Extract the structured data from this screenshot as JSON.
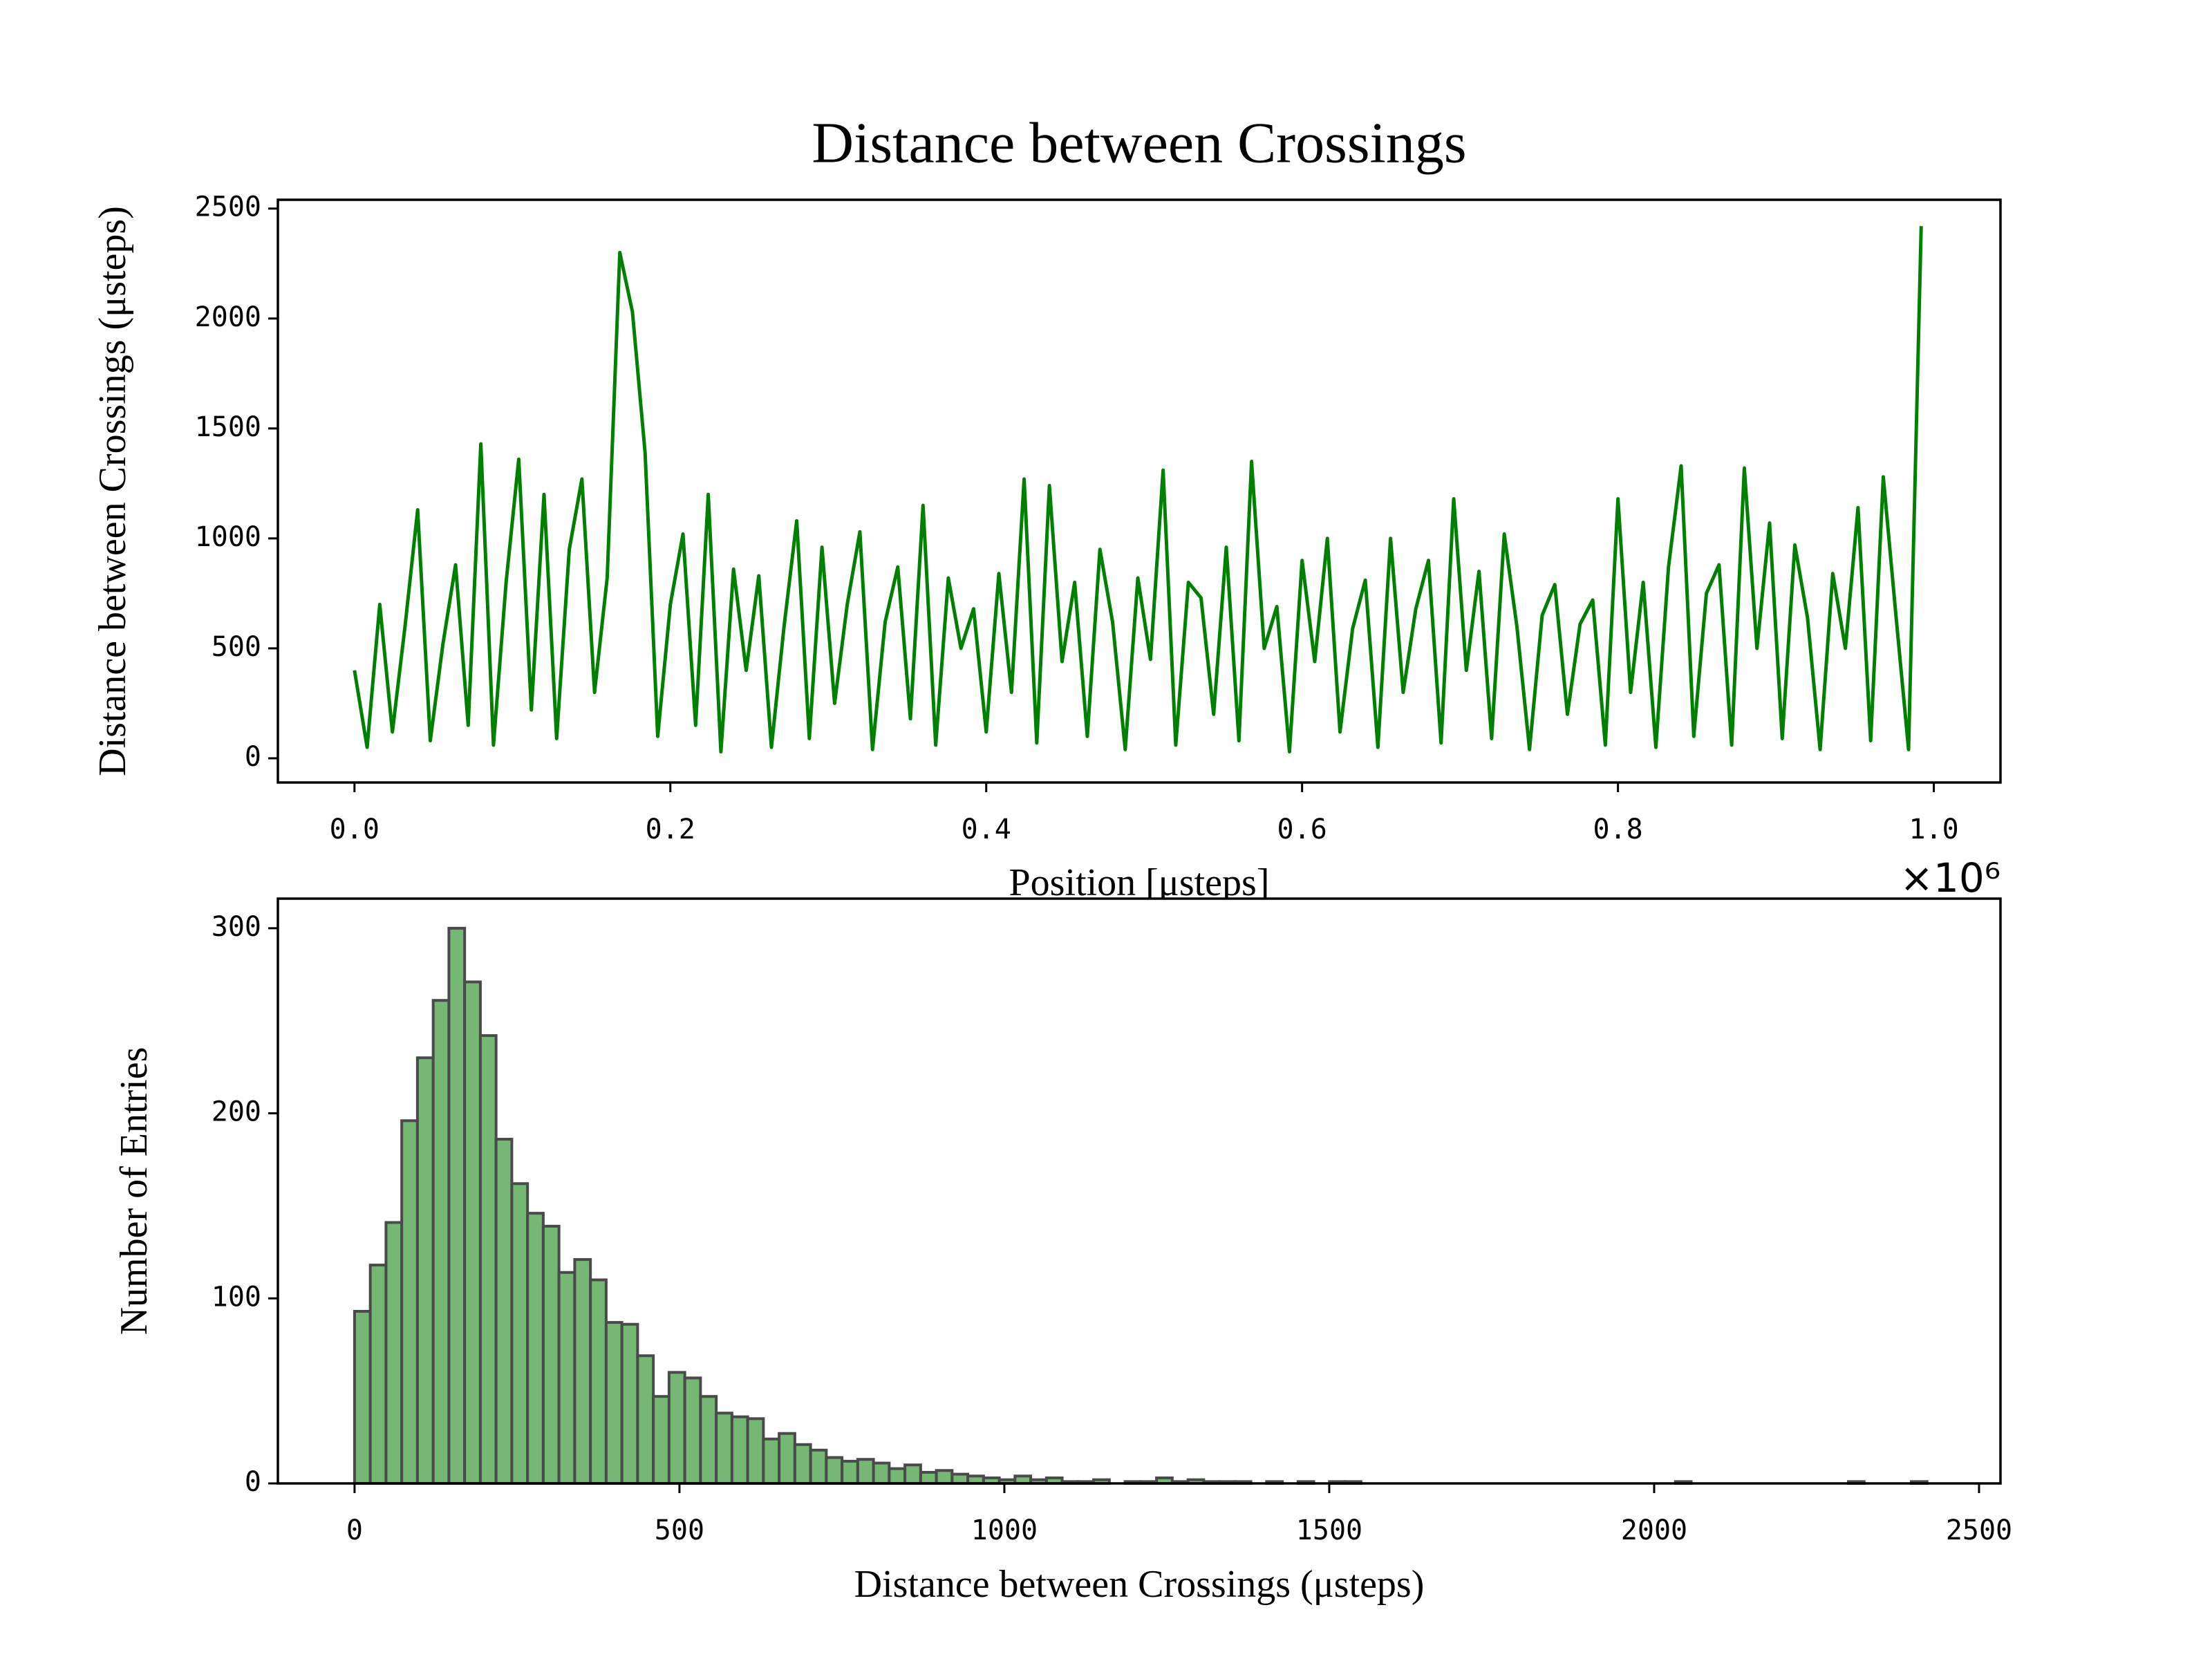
{
  "chart_data": [
    {
      "type": "line",
      "title": "Distance between Crossings",
      "xlabel": "Position [μsteps]",
      "ylabel": "Distance between Crossings (μsteps)",
      "x_offset_label": "×10⁶",
      "color": "#008000",
      "x": [
        0,
        8000,
        16000,
        24000,
        32000,
        40000,
        48000,
        56000,
        64000,
        72000,
        80000,
        88000,
        96000,
        104000,
        112000,
        120000,
        128000,
        136000,
        144000,
        152000,
        160000,
        168000,
        176000,
        184000,
        192000,
        200000,
        208000,
        216000,
        224000,
        232000,
        240000,
        248000,
        256000,
        264000,
        272000,
        280000,
        288000,
        296000,
        304000,
        312000,
        320000,
        328000,
        336000,
        344000,
        352000,
        360000,
        368000,
        376000,
        384000,
        392000,
        400000,
        408000,
        416000,
        424000,
        432000,
        440000,
        448000,
        456000,
        464000,
        472000,
        480000,
        488000,
        496000,
        504000,
        512000,
        520000,
        528000,
        536000,
        544000,
        552000,
        560000,
        568000,
        576000,
        584000,
        592000,
        600000,
        608000,
        616000,
        624000,
        632000,
        640000,
        648000,
        656000,
        664000,
        672000,
        680000,
        688000,
        696000,
        704000,
        712000,
        720000,
        728000,
        736000,
        744000,
        752000,
        760000,
        768000,
        776000,
        784000,
        792000,
        800000,
        808000,
        816000,
        824000,
        832000,
        840000,
        848000,
        856000,
        864000,
        872000,
        880000,
        888000,
        896000,
        904000,
        912000,
        920000,
        928000,
        936000,
        944000,
        952000,
        960000,
        968000,
        976000,
        984000,
        992000
      ],
      "values": [
        400,
        50,
        700,
        120,
        600,
        1130,
        80,
        520,
        880,
        150,
        1430,
        60,
        800,
        1360,
        220,
        1200,
        90,
        950,
        1270,
        300,
        820,
        2300,
        2030,
        1390,
        100,
        700,
        1020,
        150,
        1200,
        30,
        860,
        400,
        830,
        50,
        600,
        1080,
        90,
        960,
        250,
        700,
        1030,
        40,
        620,
        870,
        180,
        1150,
        60,
        820,
        500,
        680,
        120,
        840,
        300,
        1270,
        70,
        1240,
        440,
        800,
        100,
        950,
        620,
        40,
        820,
        450,
        1310,
        60,
        800,
        730,
        200,
        960,
        80,
        1350,
        500,
        690,
        30,
        900,
        440,
        1000,
        120,
        590,
        810,
        50,
        1000,
        300,
        680,
        900,
        70,
        1180,
        400,
        850,
        90,
        1020,
        600,
        40,
        650,
        790,
        200,
        610,
        720,
        60,
        1180,
        300,
        800,
        50,
        870,
        1330,
        100,
        750,
        880,
        60,
        1320,
        500,
        1070,
        90,
        970,
        640,
        40,
        840,
        500,
        1140,
        80,
        1280,
        650,
        40,
        2420
      ],
      "xlim": [
        -48500,
        1042200
      ],
      "xticks": [
        {
          "value": 0,
          "label": "0.0"
        },
        {
          "value": 200000,
          "label": "0.2"
        },
        {
          "value": 400000,
          "label": "0.4"
        },
        {
          "value": 600000,
          "label": "0.6"
        },
        {
          "value": 800000,
          "label": "0.8"
        },
        {
          "value": 1000000,
          "label": "1.0"
        }
      ],
      "ylim": [
        -110,
        2540
      ],
      "yticks": [
        0,
        500,
        1000,
        1500,
        2000,
        2500
      ]
    },
    {
      "type": "histogram",
      "xlabel": "Distance between Crossings (μsteps)",
      "ylabel": "Number of Entries",
      "color": "#74b874",
      "edgecolor": "#4a4a4a",
      "bins": [
        0,
        24.2,
        48.4,
        72.6,
        96.8,
        121,
        145.2,
        169.4,
        193.6,
        217.8,
        242,
        266.2,
        290.4,
        314.6,
        338.8,
        363,
        387.2,
        411.4,
        435.6,
        459.8,
        484,
        508.2,
        532.4,
        556.6,
        580.8,
        605,
        629.2,
        653.4,
        677.6,
        701.8,
        726,
        750.2,
        774.4,
        798.6,
        822.8,
        847,
        871.2,
        895.4,
        919.6,
        943.8,
        968,
        992.2,
        1016.4,
        1040.6,
        1064.8,
        1089,
        1113.2,
        1137.4,
        1161.6,
        1185.8,
        1210,
        1234.2,
        1258.4,
        1282.6,
        1306.8,
        1331,
        1355.2,
        1379.4,
        1403.6,
        1427.8,
        1452,
        1476.2,
        1500.4,
        1524.6,
        1548.8,
        1573,
        1597.2,
        1621.4,
        1645.6,
        1669.8,
        1694,
        1718.2,
        1742.4,
        1766.6,
        1790.8,
        1815,
        1839.2,
        1863.4,
        1887.6,
        1911.8,
        1936,
        1960.2,
        1984.4,
        2008.6,
        2032.8,
        2057,
        2081.2,
        2105.4,
        2129.6,
        2153.8,
        2178,
        2202.2,
        2226.4,
        2250.6,
        2274.8,
        2299,
        2323.2,
        2347.4,
        2371.6,
        2395.8,
        2420
      ],
      "counts": [
        93,
        118,
        141,
        196,
        230,
        261,
        300,
        271,
        242,
        186,
        162,
        146,
        139,
        114,
        121,
        110,
        87,
        86,
        69,
        47,
        60,
        57,
        47,
        38,
        36,
        35,
        24,
        27,
        21,
        18,
        14,
        12,
        13,
        11,
        8,
        10,
        6,
        7,
        5,
        4,
        3,
        2,
        4,
        2,
        3,
        1,
        1,
        2,
        0,
        1,
        1,
        3,
        1,
        2,
        1,
        1,
        1,
        0,
        1,
        0,
        1,
        0,
        1,
        1,
        0,
        0,
        0,
        0,
        0,
        0,
        0,
        0,
        0,
        0,
        0,
        0,
        0,
        0,
        0,
        0,
        0,
        0,
        0,
        0,
        1,
        0,
        0,
        0,
        0,
        0,
        0,
        0,
        0,
        0,
        0,
        1,
        0,
        0,
        0,
        1
      ],
      "xlim": [
        -118,
        2533
      ],
      "xticks": [
        0,
        500,
        1000,
        1500,
        2000,
        2500
      ],
      "ylim": [
        0,
        316
      ],
      "yticks": [
        0,
        100,
        200,
        300
      ]
    }
  ]
}
